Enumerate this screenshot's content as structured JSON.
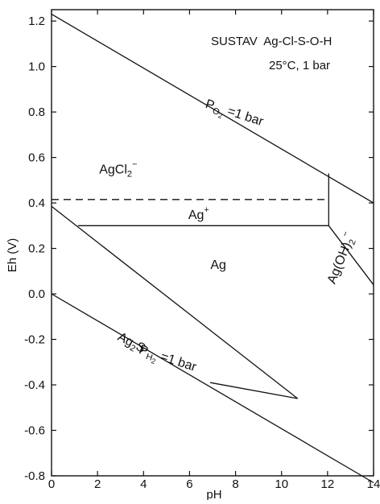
{
  "chart_data": {
    "type": "line",
    "title": "SUSTAV  Ag-Cl-S-O-H",
    "subtitle": "25°C, 1 bar",
    "xlabel": "pH",
    "ylabel": "Eh (V)",
    "xlim": [
      0,
      14
    ],
    "ylim": [
      -0.8,
      1.25
    ],
    "x_ticks": [
      0,
      2,
      4,
      6,
      8,
      10,
      12,
      14
    ],
    "y_ticks": [
      -0.8,
      -0.6,
      -0.4,
      -0.2,
      0.0,
      0.2,
      0.4,
      0.6,
      0.8,
      1.0,
      1.2
    ],
    "x_tick_labels": [
      "0",
      "2",
      "4",
      "6",
      "8",
      "10",
      "12",
      "14"
    ],
    "y_tick_labels": [
      "-0.8",
      "-0.6",
      "-0.4",
      "-0.2",
      "0.0",
      "0.2",
      "0.4",
      "0.6",
      "0.8",
      "1.0",
      "1.2"
    ],
    "grid": false,
    "series": [
      {
        "style": "solid",
        "points": [
          [
            0,
            1.23
          ],
          [
            14,
            0.4
          ]
        ]
      },
      {
        "style": "solid",
        "points": [
          [
            0,
            0.0
          ],
          [
            14,
            -0.83
          ]
        ]
      },
      {
        "style": "dashed",
        "points": [
          [
            0,
            0.415
          ],
          [
            12.05,
            0.415
          ]
        ]
      },
      {
        "style": "solid",
        "points": [
          [
            1.15,
            0.3
          ],
          [
            12.05,
            0.3
          ]
        ]
      },
      {
        "style": "solid",
        "points": [
          [
            12.05,
            0.53
          ],
          [
            12.05,
            0.3
          ]
        ]
      },
      {
        "style": "solid",
        "points": [
          [
            12.05,
            0.3
          ],
          [
            14,
            0.04
          ]
        ]
      },
      {
        "style": "solid",
        "points": [
          [
            0,
            0.385
          ],
          [
            10.7,
            -0.46
          ]
        ]
      },
      {
        "style": "solid",
        "points": [
          [
            6.9,
            -0.39
          ],
          [
            10.7,
            -0.46
          ]
        ]
      }
    ],
    "annotations": [
      {
        "text": "AgCl2⁻",
        "main": "AgCl",
        "sub": "2",
        "sup": "−",
        "x": 2.9,
        "y": 0.53,
        "rotate": 0
      },
      {
        "text": "Ag⁺",
        "main": "Ag",
        "sup": "+",
        "x": 6.4,
        "y": 0.33,
        "rotate": 0
      },
      {
        "text": "Ag",
        "main": "Ag",
        "x": 7.25,
        "y": 0.11,
        "rotate": 0
      },
      {
        "text": "Ag(OH)2⁻",
        "main": "Ag(OH)",
        "sub": "2",
        "sup": "−",
        "x": 12.75,
        "y": 0.15,
        "rotate": -68
      },
      {
        "text": "Ag2S",
        "main": "Ag",
        "sub": "2",
        "tail": "S",
        "x": 3.4,
        "y": -0.23,
        "rotate": 28
      },
      {
        "text": "PO2 =1 bar",
        "main": "P",
        "sub": "O",
        "subsub": "2",
        "tail": " =1 bar",
        "x": 7.9,
        "y": 0.78,
        "rotate": 18
      },
      {
        "text": "PH2 =1 bar",
        "main": "P",
        "sub": "H",
        "subsub": "2",
        "tail": " =1 bar",
        "x": 5.0,
        "y": -0.3,
        "rotate": 18
      }
    ]
  }
}
